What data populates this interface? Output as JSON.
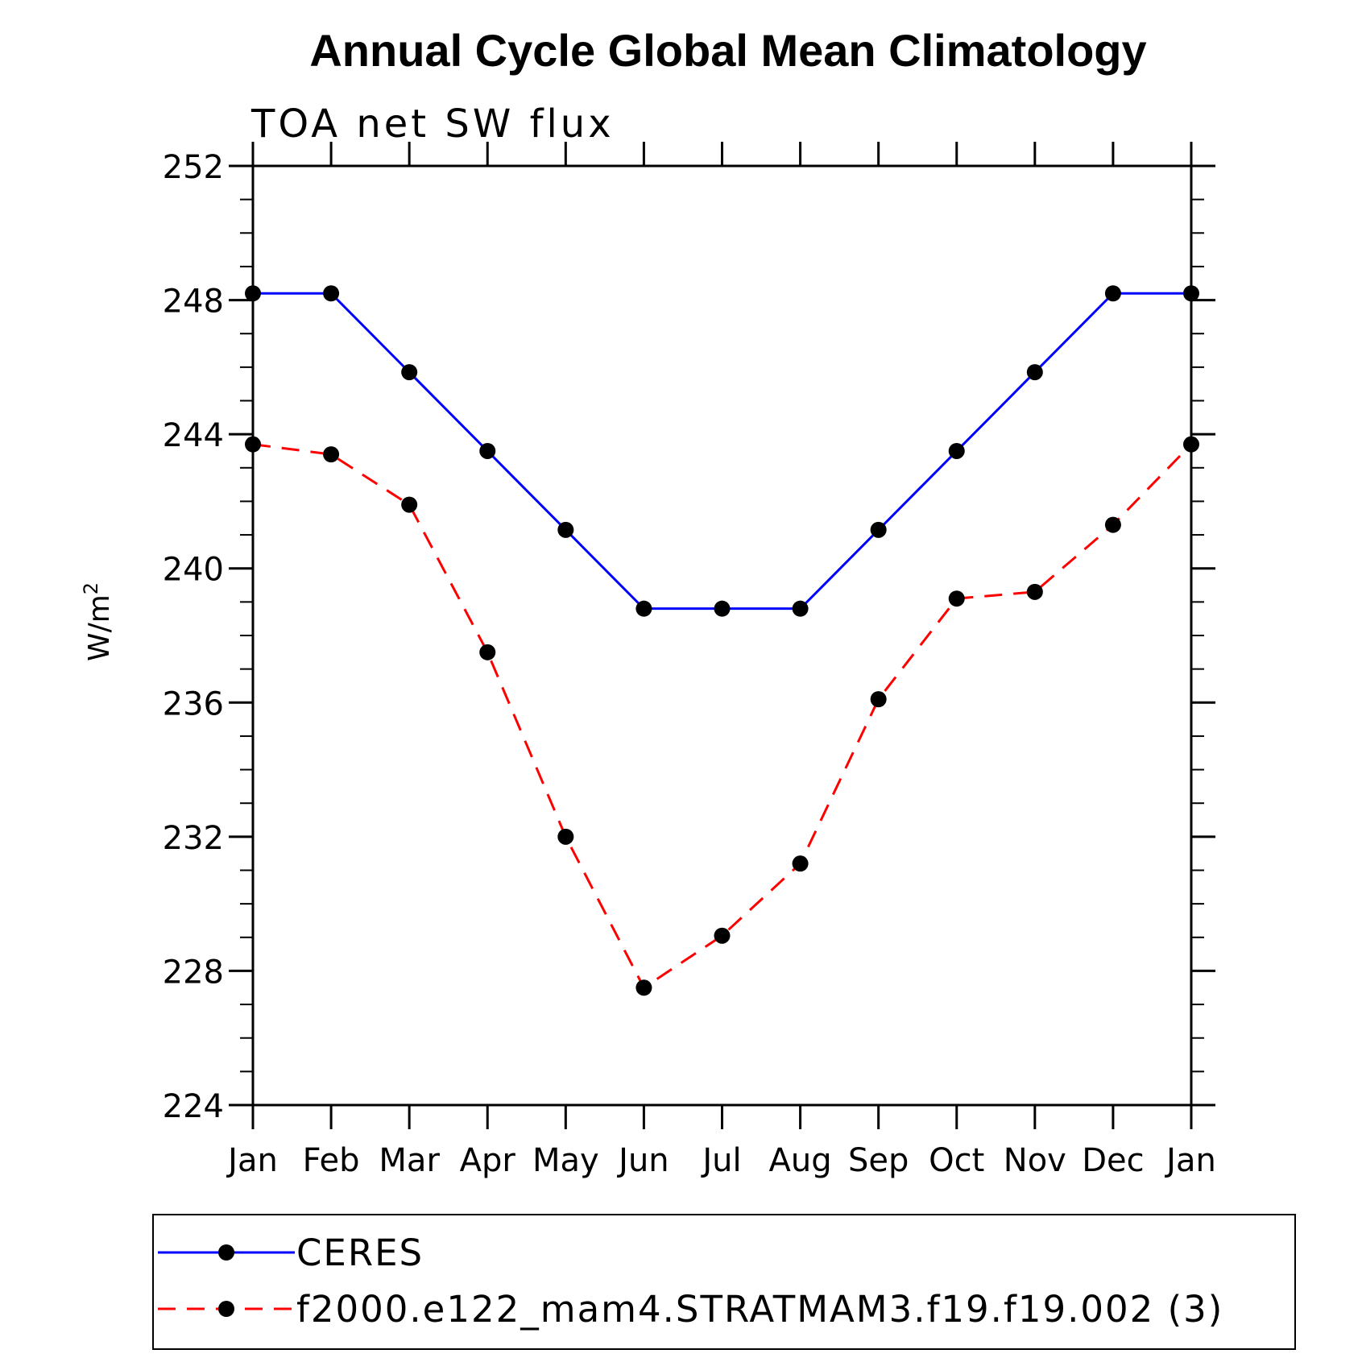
{
  "chart_data": {
    "type": "line",
    "title": "Annual Cycle Global Mean Climatology",
    "subtitle": "TOA net SW flux",
    "ylabel_base": "W/m",
    "ylabel_sup": "2",
    "categories": [
      "Jan",
      "Feb",
      "Mar",
      "Apr",
      "May",
      "Jun",
      "Jul",
      "Aug",
      "Sep",
      "Oct",
      "Nov",
      "Dec",
      "Jan"
    ],
    "ylim": [
      224,
      252
    ],
    "yticks": [
      224,
      228,
      232,
      236,
      240,
      244,
      248,
      252
    ],
    "yminor_step": 1,
    "series": [
      {
        "name": "CERES",
        "color": "#0000ff",
        "dash": "solid",
        "values": [
          248.2,
          248.2,
          245.85,
          243.5,
          241.15,
          238.8,
          238.8,
          238.8,
          241.15,
          243.5,
          245.85,
          248.2,
          248.2
        ]
      },
      {
        "name": "f2000.e122_mam4.STRATMAM3.f19.f19.002 (3)",
        "color": "#ff0000",
        "dash": "dashed",
        "values": [
          243.7,
          243.4,
          241.9,
          237.5,
          232.0,
          227.5,
          229.05,
          231.2,
          236.1,
          239.1,
          239.3,
          241.3,
          243.7
        ]
      }
    ],
    "marker_color": "#000000",
    "grid": false,
    "legend_position": "bottom"
  }
}
